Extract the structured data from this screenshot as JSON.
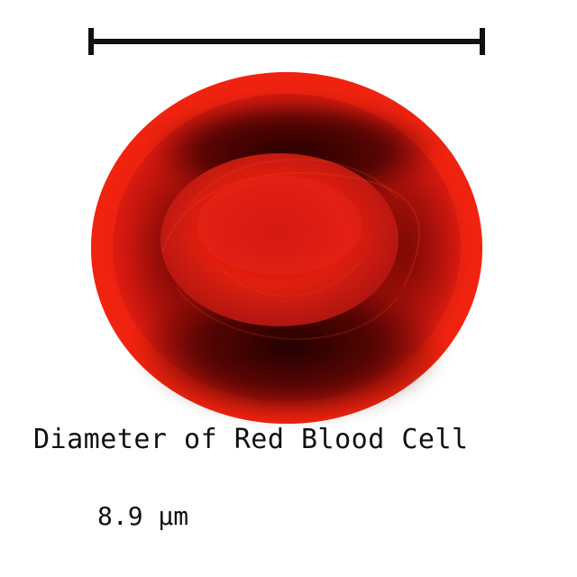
{
  "caption": "Diameter of Red Blood Cell",
  "measurement": "8.9 µm",
  "colors": {
    "cell_outer": "#e81a10",
    "cell_shadow": "#2b0707",
    "cell_center": "#cf1c12",
    "scale_bar": "#111111"
  },
  "icons": {
    "cell": "red-blood-cell-illustration",
    "scale": "scale-bar"
  }
}
